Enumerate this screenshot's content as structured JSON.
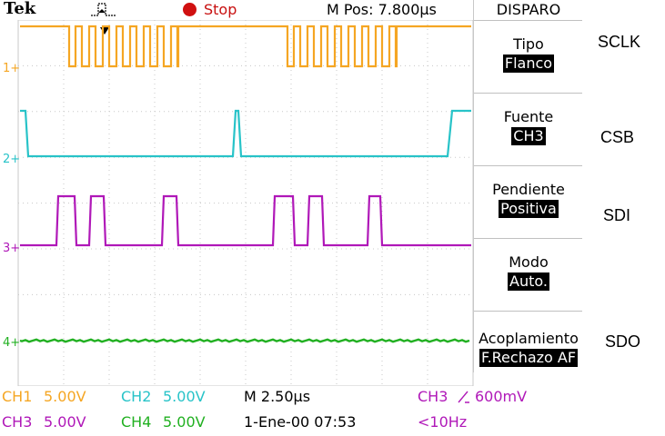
{
  "header": {
    "brand": "Tek",
    "trigger_icon": "pulse-trigger-icon",
    "status": "Stop",
    "mpos": "M Pos: 7.800µs"
  },
  "menu": {
    "title": "DISPARO",
    "items": [
      {
        "label": "Tipo",
        "value": "Flanco"
      },
      {
        "label": "Fuente",
        "value": "CH3"
      },
      {
        "label": "Pendiente",
        "value": "Positiva"
      },
      {
        "label": "Modo",
        "value": "Auto."
      },
      {
        "label": "Acoplamiento",
        "value": "F.Rechazo AF"
      }
    ]
  },
  "channels": [
    {
      "marker": "1",
      "color": "#f5a623"
    },
    {
      "marker": "2",
      "color": "#28c3c8"
    },
    {
      "marker": "3",
      "color": "#b018b8"
    },
    {
      "marker": "4",
      "color": "#21b021"
    }
  ],
  "footer": {
    "ch1": "CH1",
    "ch1_scale": "5.00V",
    "ch2": "CH2",
    "ch2_scale": "5.00V",
    "ch3": "CH3",
    "ch3_scale": "5.00V",
    "ch4": "CH4",
    "ch4_scale": "5.00V",
    "timebase": "M 2.50µs",
    "datetime": "1-Ene-00 07:53",
    "trig_src": "CH3",
    "trig_slope_icon": "rising-edge-icon",
    "trig_level": "600mV",
    "freq": "<10Hz"
  },
  "signal_labels": [
    "SCLK",
    "CSB",
    "SDI",
    "SDO"
  ],
  "colors": {
    "ch1": "#f5a623",
    "ch2": "#28c3c8",
    "ch3": "#b018b8",
    "ch4": "#21b021",
    "stop": "#c81010",
    "grid": "#c8c8c8"
  }
}
